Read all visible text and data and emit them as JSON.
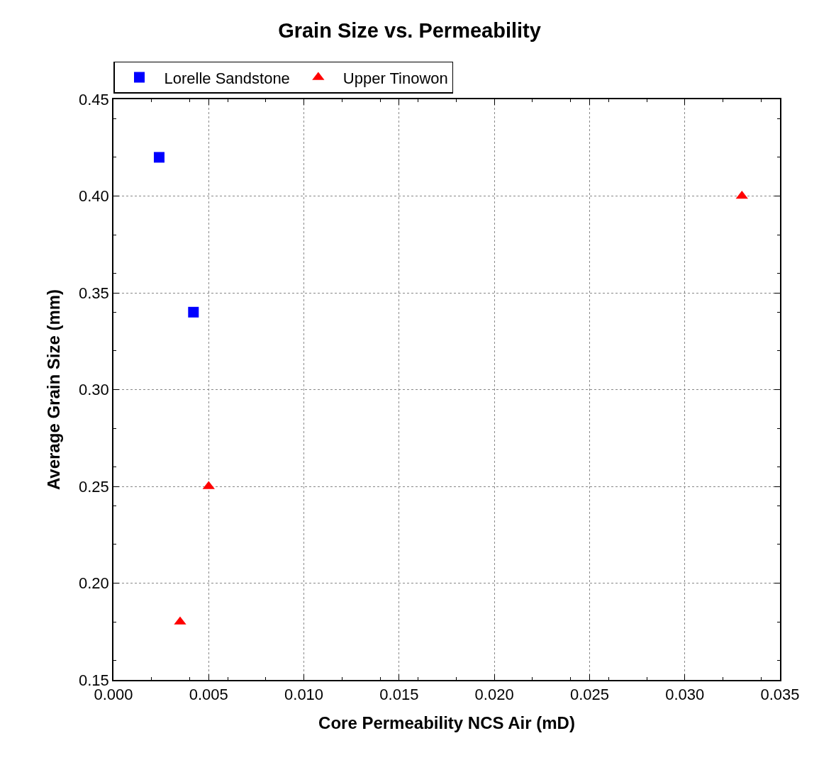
{
  "chart_data": {
    "type": "scatter",
    "title": "Grain Size vs. Permeability",
    "xlabel": "Core Permeability NCS Air (mD)",
    "ylabel": "Average Grain Size (mm)",
    "series": [
      {
        "name": "Lorelle Sandstone",
        "color": "#0000ff",
        "marker": "square",
        "x": [
          0.0024,
          0.0042
        ],
        "values": [
          0.42,
          0.34
        ]
      },
      {
        "name": "Upper Tinowon",
        "color": "#ff0000",
        "marker": "triangle",
        "x": [
          0.0035,
          0.005,
          0.033
        ],
        "values": [
          0.18,
          0.25,
          0.4
        ]
      }
    ],
    "xlim": [
      0,
      0.035
    ],
    "xticks": [
      {
        "value": 0,
        "label": "0.000"
      },
      {
        "value": 0.005,
        "label": "0.005"
      },
      {
        "value": 0.01,
        "label": "0.010"
      },
      {
        "value": 0.015,
        "label": "0.015"
      },
      {
        "value": 0.02,
        "label": "0.020"
      },
      {
        "value": 0.025,
        "label": "0.025"
      },
      {
        "value": 0.03,
        "label": "0.030"
      },
      {
        "value": 0.035,
        "label": "0.035"
      }
    ],
    "ylim": [
      0.15,
      0.45
    ],
    "yticks": [
      {
        "value": 0.15,
        "label": "0.15"
      },
      {
        "value": 0.2,
        "label": "0.20"
      },
      {
        "value": 0.25,
        "label": "0.25"
      },
      {
        "value": 0.3,
        "label": "0.30"
      },
      {
        "value": 0.35,
        "label": "0.35"
      },
      {
        "value": 0.4,
        "label": "0.40"
      },
      {
        "value": 0.45,
        "label": "0.45"
      }
    ],
    "grid": true,
    "legend": "top"
  }
}
